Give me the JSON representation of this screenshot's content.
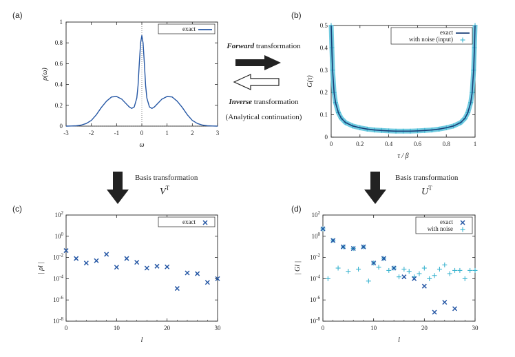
{
  "panels": {
    "a": "(a)",
    "b": "(b)",
    "c": "(c)",
    "d": "(d)"
  },
  "captions": {
    "forward_bold": "Forward",
    "forward_rest": " transformation",
    "inverse_bold": "Inverse",
    "inverse_rest": " transformation",
    "analytical": "(Analytical continuation)",
    "basis_left": "Basis transformation",
    "basis_left_sym": "V",
    "basis_right": "Basis transformation",
    "basis_right_sym": "U",
    "transpose": "T"
  },
  "colors": {
    "exact": "#2456a4",
    "noise": "#3ab3cf",
    "band": "#5bc3dc",
    "arrow": "#222222"
  },
  "chart_data": [
    {
      "id": "a",
      "type": "line",
      "xlabel": "ω",
      "ylabel": "ρ(ω)",
      "xlim": [
        -3,
        3
      ],
      "ylim": [
        0,
        1
      ],
      "xticks": [
        "-3",
        "-2",
        "-1",
        "0",
        "1",
        "2",
        "3"
      ],
      "yticks": [
        "0",
        "0.2",
        "0.4",
        "0.6",
        "0.8",
        "1"
      ],
      "legend": "top-right",
      "series": [
        {
          "name": "exact",
          "x": [
            -3.0,
            -2.8,
            -2.6,
            -2.4,
            -2.2,
            -2.0,
            -1.8,
            -1.6,
            -1.4,
            -1.2,
            -1.0,
            -0.8,
            -0.6,
            -0.5,
            -0.4,
            -0.3,
            -0.2,
            -0.15,
            -0.1,
            -0.05,
            0.0,
            0.05,
            0.1,
            0.15,
            0.2,
            0.3,
            0.4,
            0.5,
            0.6,
            0.8,
            1.0,
            1.2,
            1.4,
            1.6,
            1.8,
            2.0,
            2.2,
            2.4,
            2.6,
            2.8,
            3.0
          ],
          "y": [
            0.0,
            0.001,
            0.003,
            0.01,
            0.025,
            0.055,
            0.11,
            0.18,
            0.24,
            0.28,
            0.285,
            0.26,
            0.21,
            0.185,
            0.17,
            0.185,
            0.27,
            0.39,
            0.6,
            0.8,
            0.87,
            0.8,
            0.6,
            0.39,
            0.27,
            0.185,
            0.17,
            0.185,
            0.21,
            0.26,
            0.285,
            0.28,
            0.24,
            0.18,
            0.11,
            0.055,
            0.025,
            0.01,
            0.003,
            0.001,
            0.0
          ]
        }
      ]
    },
    {
      "id": "b",
      "type": "line",
      "xlabel": "τ / β",
      "ylabel": "G(τ)",
      "xlim": [
        0,
        1
      ],
      "ylim": [
        0,
        0.5
      ],
      "xticks": [
        "0",
        "0.2",
        "0.4",
        "0.6",
        "0.8",
        "1"
      ],
      "yticks": [
        "0",
        "0.1",
        "0.2",
        "0.3",
        "0.4",
        "0.5"
      ],
      "legend": "top-right",
      "series": [
        {
          "name": "exact",
          "x": [
            0.0,
            0.005,
            0.01,
            0.02,
            0.03,
            0.05,
            0.07,
            0.1,
            0.15,
            0.2,
            0.25,
            0.3,
            0.35,
            0.4,
            0.45,
            0.5,
            0.55,
            0.6,
            0.65,
            0.7,
            0.75,
            0.8,
            0.85,
            0.9,
            0.93,
            0.95,
            0.97,
            0.98,
            0.99,
            0.995,
            1.0
          ],
          "y": [
            0.5,
            0.4,
            0.3,
            0.2,
            0.155,
            0.11,
            0.085,
            0.065,
            0.05,
            0.042,
            0.036,
            0.032,
            0.03,
            0.028,
            0.027,
            0.027,
            0.027,
            0.028,
            0.03,
            0.032,
            0.036,
            0.042,
            0.05,
            0.065,
            0.085,
            0.11,
            0.155,
            0.2,
            0.3,
            0.4,
            0.5
          ]
        },
        {
          "name": "with noise (input)",
          "x": [
            0.0,
            0.005,
            0.01,
            0.02,
            0.03,
            0.05,
            0.07,
            0.1,
            0.15,
            0.2,
            0.25,
            0.3,
            0.35,
            0.4,
            0.45,
            0.5,
            0.55,
            0.6,
            0.65,
            0.7,
            0.75,
            0.8,
            0.85,
            0.9,
            0.93,
            0.95,
            0.97,
            0.98,
            0.99,
            0.995,
            1.0
          ],
          "y": [
            0.5,
            0.4,
            0.3,
            0.2,
            0.155,
            0.11,
            0.085,
            0.065,
            0.05,
            0.042,
            0.036,
            0.032,
            0.03,
            0.028,
            0.027,
            0.027,
            0.027,
            0.028,
            0.03,
            0.032,
            0.036,
            0.042,
            0.05,
            0.065,
            0.085,
            0.11,
            0.155,
            0.2,
            0.3,
            0.4,
            0.5
          ]
        }
      ]
    },
    {
      "id": "c",
      "type": "scatter",
      "xlabel": "l",
      "ylabel": "| ρl |",
      "xlim": [
        0,
        30
      ],
      "ylim_log10": [
        -8,
        2
      ],
      "scale_y": "log",
      "xticks": [
        "0",
        "10",
        "20",
        "30"
      ],
      "yticks": [
        "10-8",
        "10-6",
        "10-4",
        "10-2",
        "100",
        "102"
      ],
      "legend": "top-right",
      "series": [
        {
          "name": "exact",
          "x": [
            0,
            2,
            4,
            6,
            8,
            10,
            12,
            14,
            16,
            18,
            20,
            22,
            24,
            26,
            28,
            30
          ],
          "y": [
            0.045,
            0.008,
            0.003,
            0.005,
            0.02,
            0.0012,
            0.008,
            0.0035,
            0.001,
            0.0015,
            0.0013,
            1.2e-05,
            0.00035,
            0.0003,
            4.5e-05,
            0.0001
          ]
        }
      ]
    },
    {
      "id": "d",
      "type": "scatter",
      "xlabel": "l",
      "ylabel": "| Gl |",
      "xlim": [
        0,
        30
      ],
      "ylim_log10": [
        -8,
        2
      ],
      "scale_y": "log",
      "xticks": [
        "0",
        "10",
        "20",
        "30"
      ],
      "yticks": [
        "10-8",
        "10-6",
        "10-4",
        "10-2",
        "100",
        "102"
      ],
      "legend": "top-right",
      "series": [
        {
          "name": "exact",
          "x": [
            0,
            2,
            4,
            6,
            8,
            10,
            12,
            14,
            16,
            18,
            20,
            22,
            24,
            26
          ],
          "y": [
            5,
            0.4,
            0.1,
            0.07,
            0.1,
            0.003,
            0.008,
            0.001,
            0.00015,
            0.0001,
            2e-05,
            7e-08,
            6e-07,
            1.5e-07
          ]
        },
        {
          "name": "with noise",
          "x": [
            0,
            1,
            2,
            3,
            4,
            5,
            6,
            7,
            8,
            9,
            10,
            11,
            12,
            13,
            14,
            15,
            16,
            17,
            18,
            19,
            20,
            21,
            22,
            23,
            24,
            25,
            26,
            27,
            28,
            29,
            30
          ],
          "y": [
            5,
            0.0001,
            0.4,
            0.001,
            0.1,
            0.0005,
            0.07,
            0.0008,
            0.1,
            6e-05,
            0.003,
            0.0012,
            0.008,
            0.0006,
            0.001,
            0.00015,
            0.0008,
            0.0005,
            0.00015,
            0.0003,
            0.001,
            0.0001,
            0.0002,
            0.0008,
            0.002,
            0.0003,
            0.0006,
            0.0006,
            0.0001,
            0.0006,
            0.0006
          ]
        }
      ]
    }
  ]
}
